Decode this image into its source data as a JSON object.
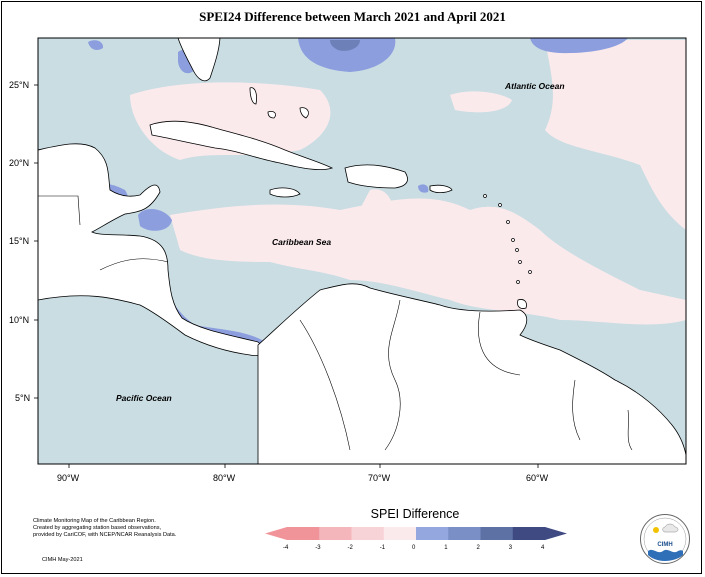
{
  "title": "SPEI24 Difference between March 2021 and April 2021",
  "ocean_labels": {
    "atlantic": "Atlantic Ocean",
    "caribbean": "Caribbean Sea",
    "pacific": "Pacific Ocean"
  },
  "axes": {
    "lat_labels": [
      "25°N",
      "20°N",
      "15°N",
      "10°N",
      "5°N"
    ],
    "lon_labels": [
      "90°W",
      "80°W",
      "70°W",
      "60°W"
    ]
  },
  "footnote": {
    "line1": "Climate Monitoring Map of the Caribbean Region.",
    "line2": "Created by aggregating station based observations,",
    "line3": "provided by CariCOF, with NCEP/NCAR Reanalysis Data.",
    "credit": "CIMH May-2021"
  },
  "legend": {
    "title": "SPEI Difference",
    "ticks": [
      "-4",
      "-3",
      "-2",
      "-1",
      "0",
      "1",
      "2",
      "3",
      "4"
    ],
    "colors": [
      "#f1949a",
      "#f4b6bb",
      "#f7d3d7",
      "#fbeaeb",
      "#c8dce2",
      "#95a7df",
      "#7b8fc7",
      "#5d71a5",
      "#3f4a82"
    ]
  },
  "logo_text": "CIMH",
  "colors": {
    "land": "#ffffff",
    "sea_base": "#c9dde3",
    "pink": "#fbeaec",
    "blue": "#8c9ede",
    "deep_blue": "#6d80b8"
  }
}
